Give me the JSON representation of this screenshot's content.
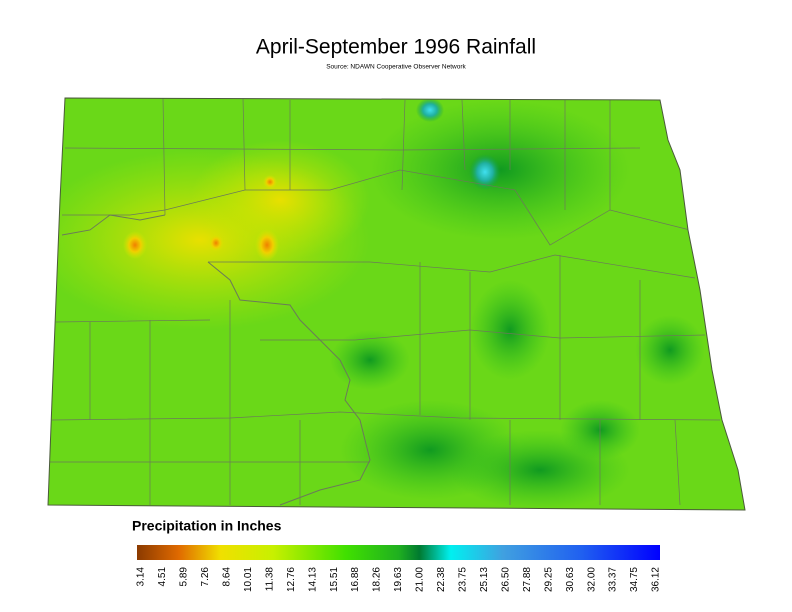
{
  "header": {
    "title": "April-September 1996 Rainfall",
    "subtitle": "Source: NDAWN Cooperative Observer Network"
  },
  "legend": {
    "title": "Precipitation in Inches",
    "ticks": [
      "3.14",
      "4.51",
      "5.89",
      "7.26",
      "8.64",
      "10.01",
      "11.38",
      "12.76",
      "14.13",
      "15.51",
      "16.88",
      "18.26",
      "19.63",
      "21.00",
      "22.38",
      "23.75",
      "25.13",
      "26.50",
      "27.88",
      "29.25",
      "30.63",
      "32.00",
      "33.37",
      "34.75",
      "36.12"
    ]
  }
}
